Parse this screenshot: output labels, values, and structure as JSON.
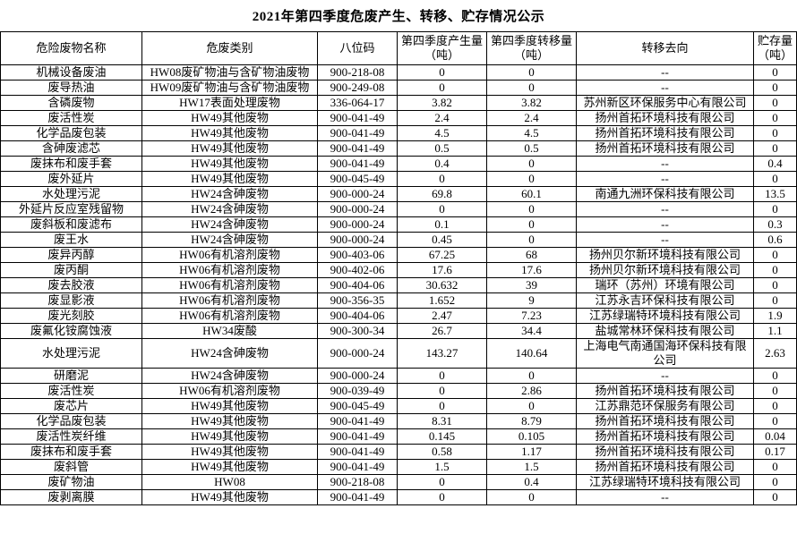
{
  "page_title": "2021年第四季度危废产生、转移、贮存情况公示",
  "colors": {
    "background": "#ffffff",
    "text": "#000000",
    "border": "#000000"
  },
  "table": {
    "columns": [
      {
        "key": "name",
        "label": "危险废物名称"
      },
      {
        "key": "category",
        "label": "危废类别"
      },
      {
        "key": "code",
        "label": "八位码"
      },
      {
        "key": "produced",
        "label": "第四季度产生量\n（吨）"
      },
      {
        "key": "transferred",
        "label": "第四季度转移量\n（吨）"
      },
      {
        "key": "destination",
        "label": "转移去向"
      },
      {
        "key": "storage",
        "label": "贮存量\n（吨）"
      }
    ],
    "rows": [
      [
        "机械设备废油",
        "HW08废矿物油与含矿物油废物",
        "900-218-08",
        "0",
        "0",
        "--",
        "0"
      ],
      [
        "废导热油",
        "HW09废矿物油与含矿物油废物",
        "900-249-08",
        "0",
        "0",
        "--",
        "0"
      ],
      [
        "含磷废物",
        "HW17表面处理废物",
        "336-064-17",
        "3.82",
        "3.82",
        "苏州新区环保服务中心有限公司",
        "0"
      ],
      [
        "废活性炭",
        "HW49其他废物",
        "900-041-49",
        "2.4",
        "2.4",
        "扬州首拓环境科技有限公司",
        "0"
      ],
      [
        "化学品废包装",
        "HW49其他废物",
        "900-041-49",
        "4.5",
        "4.5",
        "扬州首拓环境科技有限公司",
        "0"
      ],
      [
        "含砷废滤芯",
        "HW49其他废物",
        "900-041-49",
        "0.5",
        "0.5",
        "扬州首拓环境科技有限公司",
        "0"
      ],
      [
        "废抹布和废手套",
        "HW49其他废物",
        "900-041-49",
        "0.4",
        "0",
        "--",
        "0.4"
      ],
      [
        "废外延片",
        "HW49其他废物",
        "900-045-49",
        "0",
        "0",
        "--",
        "0"
      ],
      [
        "水处理污泥",
        "HW24含砷废物",
        "900-000-24",
        "69.8",
        "60.1",
        "南通九洲环保科技有限公司",
        "13.5"
      ],
      [
        "外延片反应室残留物",
        "HW24含砷废物",
        "900-000-24",
        "0",
        "0",
        "--",
        "0"
      ],
      [
        "废斜板和废滤布",
        "HW24含砷废物",
        "900-000-24",
        "0.1",
        "0",
        "--",
        "0.3"
      ],
      [
        "废王水",
        "HW24含砷废物",
        "900-000-24",
        "0.45",
        "0",
        "--",
        "0.6"
      ],
      [
        "废异丙醇",
        "HW06有机溶剂废物",
        "900-403-06",
        "67.25",
        "68",
        "扬州贝尔新环境科技有限公司",
        "0"
      ],
      [
        "废丙酮",
        "HW06有机溶剂废物",
        "900-402-06",
        "17.6",
        "17.6",
        "扬州贝尔新环境科技有限公司",
        "0"
      ],
      [
        "废去胶液",
        "HW06有机溶剂废物",
        "900-404-06",
        "30.632",
        "39",
        "瑞环（苏州）环境有限公司",
        "0"
      ],
      [
        "废显影液",
        "HW06有机溶剂废物",
        "900-356-35",
        "1.652",
        "9",
        "江苏永吉环保科技有限公司",
        "0"
      ],
      [
        "废光刻胶",
        "HW06有机溶剂废物",
        "900-404-06",
        "2.47",
        "7.23",
        "江苏绿瑞特环境科技有限公司",
        "1.9"
      ],
      [
        "废氟化铵腐蚀液",
        "HW34废酸",
        "900-300-34",
        "26.7",
        "34.4",
        "盐城常林环保科技有限公司",
        "1.1"
      ],
      [
        "水处理污泥",
        "HW24含砷废物",
        "900-000-24",
        "143.27",
        "140.64",
        "上海电气南通国海环保科技有限公司",
        "2.63"
      ],
      [
        "研磨泥",
        "HW24含砷废物",
        "900-000-24",
        "0",
        "0",
        "--",
        "0"
      ],
      [
        "废活性炭",
        "HW06有机溶剂废物",
        "900-039-49",
        "0",
        "2.86",
        "扬州首拓环境科技有限公司",
        "0"
      ],
      [
        "废芯片",
        "HW49其他废物",
        "900-045-49",
        "0",
        "0",
        "江苏鼎范环保服务有限公司",
        "0"
      ],
      [
        "化学品废包装",
        "HW49其他废物",
        "900-041-49",
        "8.31",
        "8.79",
        "扬州首拓环境科技有限公司",
        "0"
      ],
      [
        "废活性炭纤维",
        "HW49其他废物",
        "900-041-49",
        "0.145",
        "0.105",
        "扬州首拓环境科技有限公司",
        "0.04"
      ],
      [
        "废抹布和废手套",
        "HW49其他废物",
        "900-041-49",
        "0.58",
        "1.17",
        "扬州首拓环境科技有限公司",
        "0.17"
      ],
      [
        "废斜管",
        "HW49其他废物",
        "900-041-49",
        "1.5",
        "1.5",
        "扬州首拓环境科技有限公司",
        "0"
      ],
      [
        "废矿物油",
        "HW08",
        "900-218-08",
        "0",
        "0.4",
        "江苏绿瑞特环境科技有限公司",
        "0"
      ],
      [
        "废剥离膜",
        "HW49其他废物",
        "900-041-49",
        "0",
        "0",
        "--",
        "0"
      ]
    ]
  }
}
